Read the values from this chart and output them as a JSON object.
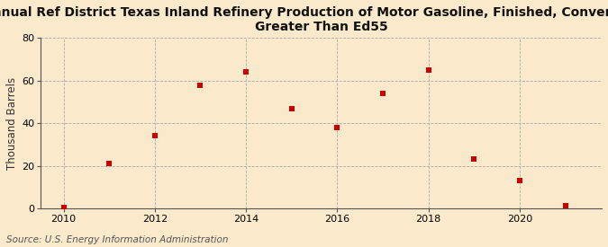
{
  "title_line1": "Annual Ref District Texas Inland Refinery Production of Motor Gasoline, Finished, Conventional,",
  "title_line2": "Greater Than Ed55",
  "ylabel": "Thousand Barrels",
  "source": "Source: U.S. Energy Information Administration",
  "years": [
    2010,
    2011,
    2012,
    2013,
    2014,
    2015,
    2016,
    2017,
    2018,
    2019,
    2020,
    2021
  ],
  "values": [
    0.5,
    21,
    34,
    58,
    64,
    47,
    38,
    54,
    65,
    23,
    13,
    1
  ],
  "marker_color": "#cc0000",
  "background_color": "#faeacb",
  "grid_color": "#aaaaaa",
  "ylim": [
    0,
    80
  ],
  "yticks": [
    0,
    20,
    40,
    60,
    80
  ],
  "xlim": [
    2009.5,
    2021.8
  ],
  "xticks": [
    2010,
    2012,
    2014,
    2016,
    2018,
    2020
  ],
  "title_fontsize": 10,
  "ylabel_fontsize": 8.5,
  "source_fontsize": 7.5,
  "marker_size": 5
}
